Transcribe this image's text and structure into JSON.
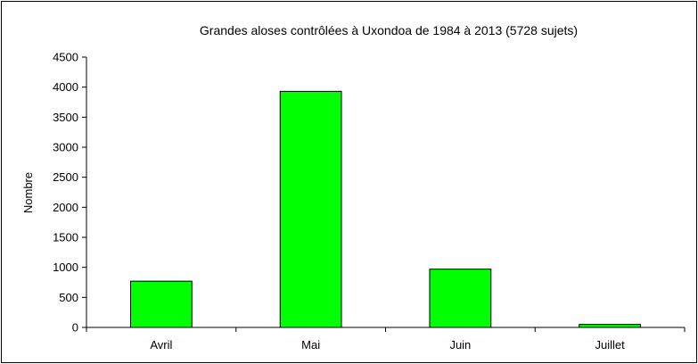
{
  "chart_data": {
    "type": "bar",
    "title": "Grandes aloses contrôlées à Uxondoa de 1984 à 2013 (5728 sujets)",
    "xlabel": "",
    "ylabel": "Nombre",
    "categories": [
      "Avril",
      "Mai",
      "Juin",
      "Juillet"
    ],
    "values": [
      770,
      3930,
      970,
      50
    ],
    "ylim": [
      0,
      4500
    ],
    "yticks": [
      0,
      500,
      1000,
      1500,
      2000,
      2500,
      3000,
      3500,
      4000,
      4500
    ],
    "grid": false,
    "legend": "none",
    "bar_color": "#00ff00",
    "bar_outline_color": "#000000"
  }
}
